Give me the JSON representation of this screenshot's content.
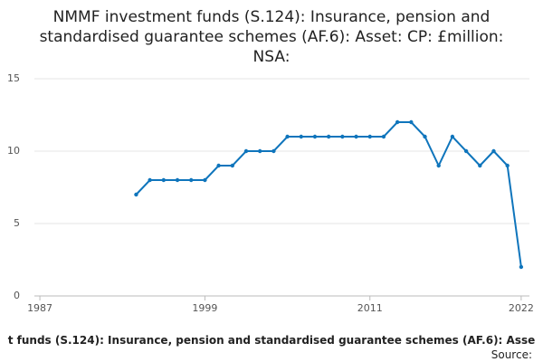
{
  "chart_data": {
    "type": "line",
    "title_lines": [
      "NMMF investment funds (S.124): Insurance, pension and",
      "standardised guarantee schemes (AF.6): Asset: CP: £million:",
      "NSA:"
    ],
    "x": [
      1994,
      1995,
      1996,
      1997,
      1998,
      1999,
      2000,
      2001,
      2002,
      2003,
      2004,
      2005,
      2006,
      2007,
      2008,
      2009,
      2010,
      2011,
      2012,
      2013,
      2014,
      2015,
      2016,
      2017,
      2018,
      2019,
      2020,
      2021,
      2022
    ],
    "series": [
      {
        "color": "#0f75bc",
        "values": [
          7,
          8,
          8,
          8,
          8,
          8,
          9,
          9,
          10,
          10,
          10,
          11,
          11,
          11,
          11,
          11,
          11,
          11,
          11,
          12,
          12,
          11,
          9,
          11,
          10,
          9,
          10,
          9,
          2
        ]
      }
    ],
    "xlim": [
      1986.6,
      2022.6
    ],
    "xticks": [
      1987,
      1999,
      2011,
      2022
    ],
    "ylim": [
      0,
      15
    ],
    "yticks": [
      0,
      5,
      10,
      15
    ],
    "grid": true,
    "footer": "t funds (S.124): Insurance, pension and standardised guarantee schemes (AF.6): Asse",
    "source": "Source:"
  }
}
